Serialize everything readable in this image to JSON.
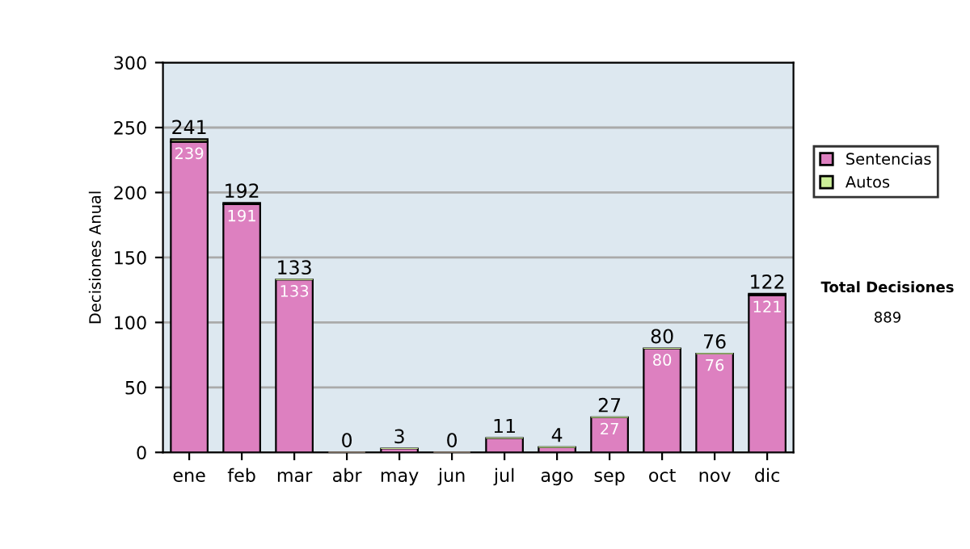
{
  "chart_data": {
    "type": "bar",
    "stacked": true,
    "ylabel": "Decisiones Anual",
    "categories": [
      "ene",
      "feb",
      "mar",
      "abr",
      "may",
      "jun",
      "jul",
      "ago",
      "sep",
      "oct",
      "nov",
      "dic"
    ],
    "series": [
      {
        "name": "Sentencias",
        "color": "#dd80c0",
        "values": [
          239,
          191,
          133,
          0,
          3,
          0,
          11,
          4,
          27,
          80,
          76,
          121
        ],
        "value_labels": [
          "239",
          "191",
          "133",
          null,
          null,
          null,
          null,
          null,
          "27",
          "80",
          "76",
          "121"
        ]
      },
      {
        "name": "Autos",
        "color": "#ccee99",
        "values": [
          2,
          1,
          0,
          0,
          0,
          0,
          0,
          0,
          0,
          0,
          0,
          1
        ]
      }
    ],
    "totals": [
      "241",
      "192",
      "133",
      "0",
      "3",
      "0",
      "11",
      "4",
      "27",
      "80",
      "76",
      "122"
    ],
    "ylim": [
      0,
      300
    ],
    "yticks": [
      0,
      50,
      100,
      150,
      200,
      250,
      300
    ],
    "grid": "y",
    "legend": "right",
    "annotations": [
      "Total Decisiones",
      "889"
    ]
  }
}
